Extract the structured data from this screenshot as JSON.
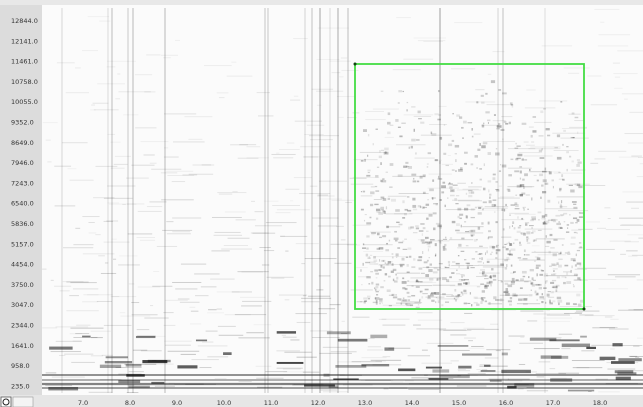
{
  "y_axis": {
    "labels": [
      "12844.0",
      "12141.0",
      "11461.0",
      "10758.0",
      "10055.0",
      "9352.0",
      "8649.0",
      "7946.0",
      "7243.0",
      "6540.0",
      "5836.0",
      "5157.0",
      "4454.0",
      "3750.0",
      "3047.0",
      "2344.0",
      "1641.0",
      "958.0",
      "235.0"
    ]
  },
  "x_axis": {
    "labels": [
      "7.0",
      "8.0",
      "9.0",
      "10.0",
      "11.0",
      "12.0",
      "13.0",
      "14.0",
      "15.0",
      "16.0",
      "17.0",
      "18.0"
    ]
  }
}
